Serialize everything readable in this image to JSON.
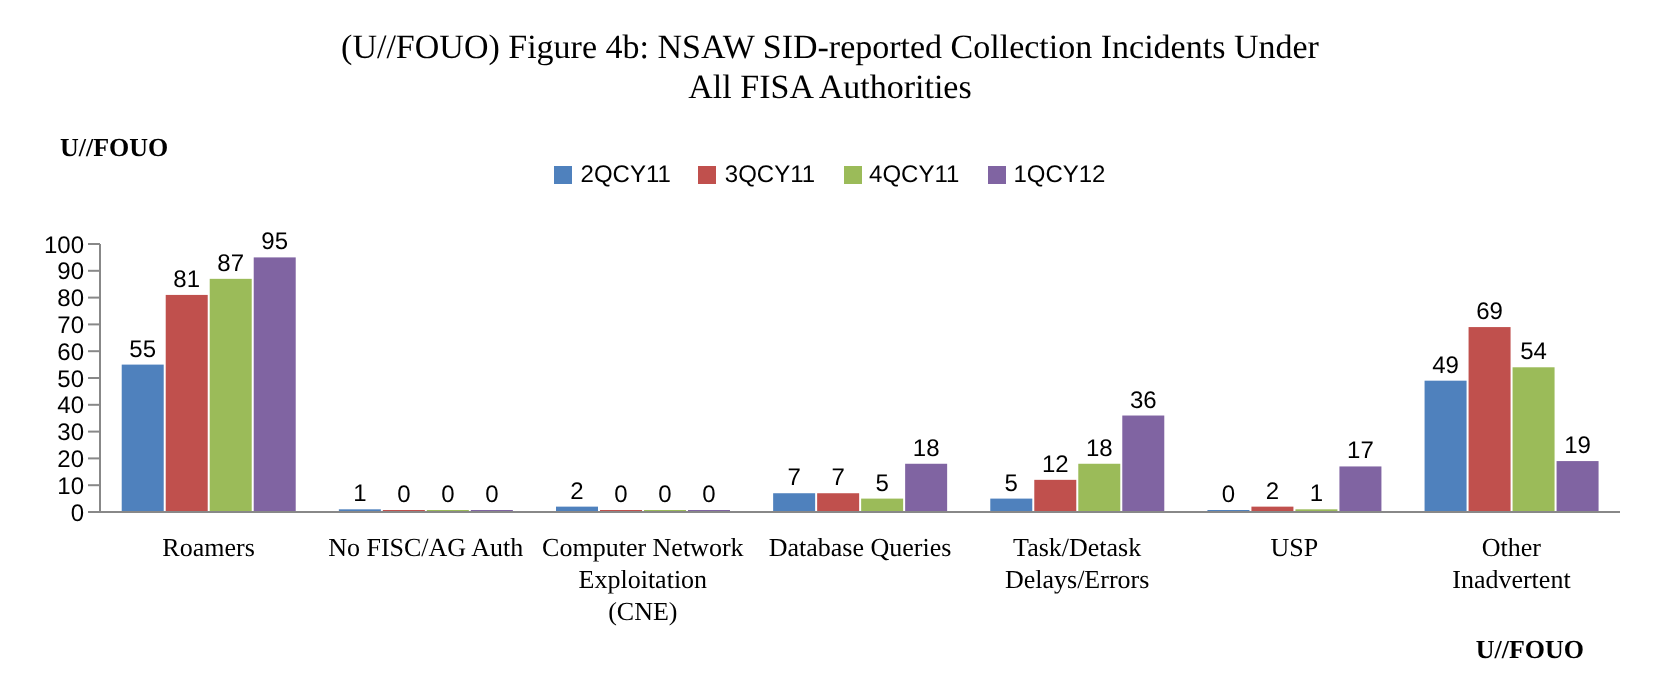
{
  "chart_data": {
    "type": "bar",
    "title": "(U//FOUO) Figure 4b: NSAW SID-reported Collection Incidents Under All FISA Authorities",
    "annotations": [
      "U//FOUO",
      "U//FOUO"
    ],
    "categories": [
      "Roamers",
      "No FISC/AG Auth",
      "Computer Network Exploitation (CNE)",
      "Database Queries",
      "Task/Detask Delays/Errors",
      "USP",
      "Other Inadvertent"
    ],
    "series": [
      {
        "name": "2QCY11",
        "color": "#4f81bd",
        "values": [
          55,
          1,
          2,
          7,
          5,
          0,
          49
        ]
      },
      {
        "name": "3QCY11",
        "color": "#c0504d",
        "values": [
          81,
          0,
          0,
          7,
          12,
          2,
          69
        ]
      },
      {
        "name": "4QCY11",
        "color": "#9bbb59",
        "values": [
          87,
          0,
          0,
          5,
          18,
          1,
          54
        ]
      },
      {
        "name": "1QCY12",
        "color": "#8064a2",
        "values": [
          95,
          0,
          0,
          18,
          36,
          17,
          19
        ]
      }
    ],
    "ylim": [
      0,
      100
    ],
    "yticks": [
      0,
      10,
      20,
      30,
      40,
      50,
      60,
      70,
      80,
      90,
      100
    ],
    "data_labels": true,
    "legend": "top",
    "grid": false
  }
}
